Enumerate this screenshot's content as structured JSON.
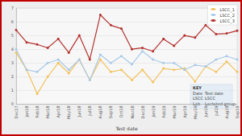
{
  "chart_data": {
    "type": "line",
    "x_label": "Test date",
    "categories": [
      "Dec17",
      "Jan18",
      "Feb18",
      "Mar18",
      "Apr18",
      "May18",
      "Jun18",
      "Jul18",
      "Aug18",
      "Sep18",
      "Oct18",
      "Nov18",
      "Dec18",
      "Jan19",
      "Feb19",
      "Mar19",
      "Apr19",
      "May19",
      "Jun19",
      "Jul19",
      "Aug19",
      "Sep19"
    ],
    "series": [
      {
        "name": "LSCC_1",
        "color": "#f2c25e",
        "values": [
          3.75,
          2.5,
          0.75,
          2.0,
          3.0,
          2.25,
          3.25,
          1.75,
          3.25,
          2.35,
          2.5,
          1.75,
          2.5,
          1.6,
          2.6,
          2.5,
          2.6,
          1.65,
          2.75,
          2.35,
          3.1,
          2.35
        ]
      },
      {
        "name": "LSCC_2",
        "color": "#a9c9e8",
        "values": [
          4.0,
          2.5,
          2.35,
          3.0,
          3.25,
          2.5,
          3.25,
          1.75,
          3.6,
          3.0,
          3.5,
          2.9,
          3.85,
          3.25,
          3.0,
          3.0,
          2.5,
          2.85,
          2.75,
          3.25,
          3.5,
          3.25
        ]
      },
      {
        "name": "LSCC_3",
        "color": "#b3322f",
        "values": [
          5.4,
          4.5,
          4.35,
          4.1,
          4.75,
          3.75,
          5.0,
          3.25,
          6.5,
          5.75,
          5.5,
          4.0,
          4.1,
          3.85,
          4.75,
          4.25,
          5.0,
          4.85,
          5.75,
          5.1,
          5.15,
          5.35
        ]
      }
    ],
    "ylim": [
      0,
      7
    ],
    "yticks": [
      0,
      1,
      2,
      3,
      4,
      5,
      6,
      7
    ],
    "grid": true,
    "legend": "top-right",
    "marker": "circle",
    "annotation": {
      "title": "KEY",
      "rows": [
        [
          "Date",
          "Test date"
        ],
        [
          "LSCC",
          "LSCC"
        ],
        [
          "Lab",
          "Lactated group"
        ]
      ]
    }
  }
}
